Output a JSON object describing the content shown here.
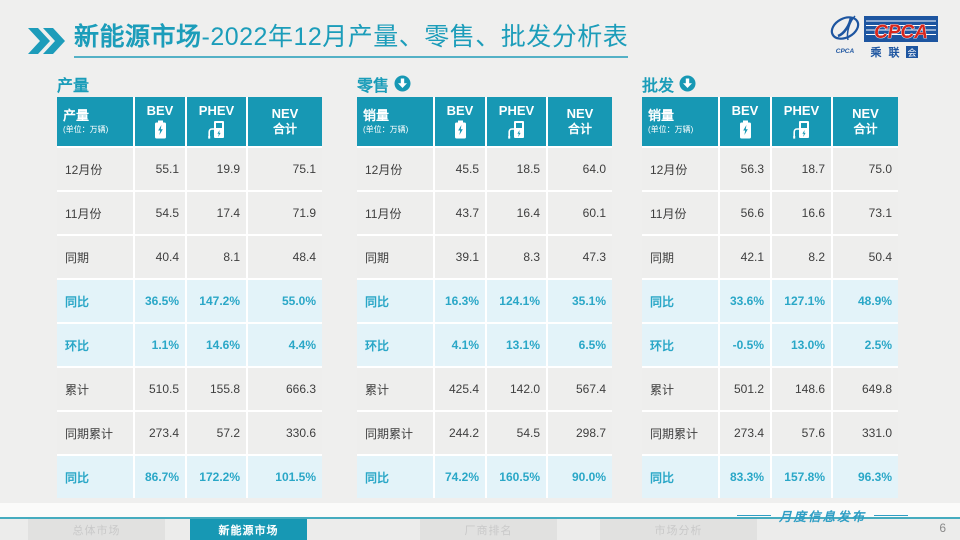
{
  "title": {
    "bold": "新能源市场",
    "rest": "-2022年12月产量、零售、批发分析表"
  },
  "logo": {
    "acronym": "CPCA",
    "cn_name_1": "乘",
    "cn_name_2": "联",
    "cn_name_3": "会",
    "emblem_caption": "CPCA"
  },
  "watermark": "CPCA 乘联会",
  "colors": {
    "accent_teal": "#1798b4",
    "title_teal": "#1c9dba",
    "highlight_row_bg": "#e3f3f9",
    "highlight_text": "#2aa7c7",
    "body_text": "#3e3e3e",
    "logo_blue": "#1d55a0",
    "logo_red": "#d8261c",
    "page_bg": "#efefee"
  },
  "tables": [
    {
      "section": "产量",
      "header": {
        "label": "产量",
        "unit": "(单位：万辆)",
        "col_bev": "BEV",
        "col_phev": "PHEV",
        "col_nev_1": "NEV",
        "col_nev_2": "合计"
      },
      "rows": [
        {
          "label": "12月份",
          "values": [
            "55.1",
            "19.9",
            "75.1"
          ],
          "highlight": false
        },
        {
          "label": "11月份",
          "values": [
            "54.5",
            "17.4",
            "71.9"
          ],
          "highlight": false
        },
        {
          "label": "同期",
          "values": [
            "40.4",
            "8.1",
            "48.4"
          ],
          "highlight": false
        },
        {
          "label": "同比",
          "values": [
            "36.5%",
            "147.2%",
            "55.0%"
          ],
          "highlight": true
        },
        {
          "label": "环比",
          "values": [
            "1.1%",
            "14.6%",
            "4.4%"
          ],
          "highlight": true
        },
        {
          "label": "累计",
          "values": [
            "510.5",
            "155.8",
            "666.3"
          ],
          "highlight": false
        },
        {
          "label": "同期累计",
          "values": [
            "273.4",
            "57.2",
            "330.6"
          ],
          "highlight": false
        },
        {
          "label": "同比",
          "values": [
            "86.7%",
            "172.2%",
            "101.5%"
          ],
          "highlight": true
        }
      ]
    },
    {
      "section": "零售",
      "header": {
        "label": "销量",
        "unit": "(单位：万辆)",
        "col_bev": "BEV",
        "col_phev": "PHEV",
        "col_nev_1": "NEV",
        "col_nev_2": "合计"
      },
      "rows": [
        {
          "label": "12月份",
          "values": [
            "45.5",
            "18.5",
            "64.0"
          ],
          "highlight": false
        },
        {
          "label": "11月份",
          "values": [
            "43.7",
            "16.4",
            "60.1"
          ],
          "highlight": false
        },
        {
          "label": "同期",
          "values": [
            "39.1",
            "8.3",
            "47.3"
          ],
          "highlight": false
        },
        {
          "label": "同比",
          "values": [
            "16.3%",
            "124.1%",
            "35.1%"
          ],
          "highlight": true
        },
        {
          "label": "环比",
          "values": [
            "4.1%",
            "13.1%",
            "6.5%"
          ],
          "highlight": true
        },
        {
          "label": "累计",
          "values": [
            "425.4",
            "142.0",
            "567.4"
          ],
          "highlight": false
        },
        {
          "label": "同期累计",
          "values": [
            "244.2",
            "54.5",
            "298.7"
          ],
          "highlight": false
        },
        {
          "label": "同比",
          "values": [
            "74.2%",
            "160.5%",
            "90.0%"
          ],
          "highlight": true
        }
      ]
    },
    {
      "section": "批发",
      "header": {
        "label": "销量",
        "unit": "(单位：万辆)",
        "col_bev": "BEV",
        "col_phev": "PHEV",
        "col_nev_1": "NEV",
        "col_nev_2": "合计"
      },
      "rows": [
        {
          "label": "12月份",
          "values": [
            "56.3",
            "18.7",
            "75.0"
          ],
          "highlight": false
        },
        {
          "label": "11月份",
          "values": [
            "56.6",
            "16.6",
            "73.1"
          ],
          "highlight": false
        },
        {
          "label": "同期",
          "values": [
            "42.1",
            "8.2",
            "50.4"
          ],
          "highlight": false
        },
        {
          "label": "同比",
          "values": [
            "33.6%",
            "127.1%",
            "48.9%"
          ],
          "highlight": true
        },
        {
          "label": "环比",
          "values": [
            "-0.5%",
            "13.0%",
            "2.5%"
          ],
          "highlight": true
        },
        {
          "label": "累计",
          "values": [
            "501.2",
            "148.6",
            "649.8"
          ],
          "highlight": false
        },
        {
          "label": "同期累计",
          "values": [
            "273.4",
            "57.6",
            "331.0"
          ],
          "highlight": false
        },
        {
          "label": "同比",
          "values": [
            "83.3%",
            "157.8%",
            "96.3%"
          ],
          "highlight": true
        }
      ]
    }
  ],
  "footer": {
    "tabs": [
      {
        "label": "总体市场",
        "active": false
      },
      {
        "label": "新能源市场",
        "active": true
      },
      {
        "label": "厂商排名",
        "active": false
      },
      {
        "label": "市场分析",
        "active": false
      }
    ],
    "release_note": "月度信息发布",
    "page_number": "6"
  },
  "chart_data": [
    {
      "type": "table",
      "title": "产量",
      "unit": "万辆",
      "columns": [
        "BEV",
        "PHEV",
        "NEV合计"
      ],
      "rows": [
        [
          "12月份",
          55.1,
          19.9,
          75.1
        ],
        [
          "11月份",
          54.5,
          17.4,
          71.9
        ],
        [
          "同期",
          40.4,
          8.1,
          48.4
        ],
        [
          "同比",
          "36.5%",
          "147.2%",
          "55.0%"
        ],
        [
          "环比",
          "1.1%",
          "14.6%",
          "4.4%"
        ],
        [
          "累计",
          510.5,
          155.8,
          666.3
        ],
        [
          "同期累计",
          273.4,
          57.2,
          330.6
        ],
        [
          "同比",
          "86.7%",
          "172.2%",
          "101.5%"
        ]
      ]
    },
    {
      "type": "table",
      "title": "零售",
      "unit": "万辆",
      "columns": [
        "BEV",
        "PHEV",
        "NEV合计"
      ],
      "rows": [
        [
          "12月份",
          45.5,
          18.5,
          64.0
        ],
        [
          "11月份",
          43.7,
          16.4,
          60.1
        ],
        [
          "同期",
          39.1,
          8.3,
          47.3
        ],
        [
          "同比",
          "16.3%",
          "124.1%",
          "35.1%"
        ],
        [
          "环比",
          "4.1%",
          "13.1%",
          "6.5%"
        ],
        [
          "累计",
          425.4,
          142.0,
          567.4
        ],
        [
          "同期累计",
          244.2,
          54.5,
          298.7
        ],
        [
          "同比",
          "74.2%",
          "160.5%",
          "90.0%"
        ]
      ]
    },
    {
      "type": "table",
      "title": "批发",
      "unit": "万辆",
      "columns": [
        "BEV",
        "PHEV",
        "NEV合计"
      ],
      "rows": [
        [
          "12月份",
          56.3,
          18.7,
          75.0
        ],
        [
          "11月份",
          56.6,
          16.6,
          73.1
        ],
        [
          "同期",
          42.1,
          8.2,
          50.4
        ],
        [
          "同比",
          "33.6%",
          "127.1%",
          "48.9%"
        ],
        [
          "环比",
          "-0.5%",
          "13.0%",
          "2.5%"
        ],
        [
          "累计",
          501.2,
          148.6,
          649.8
        ],
        [
          "同期累计",
          273.4,
          57.6,
          331.0
        ],
        [
          "同比",
          "83.3%",
          "157.8%",
          "96.3%"
        ]
      ]
    }
  ]
}
